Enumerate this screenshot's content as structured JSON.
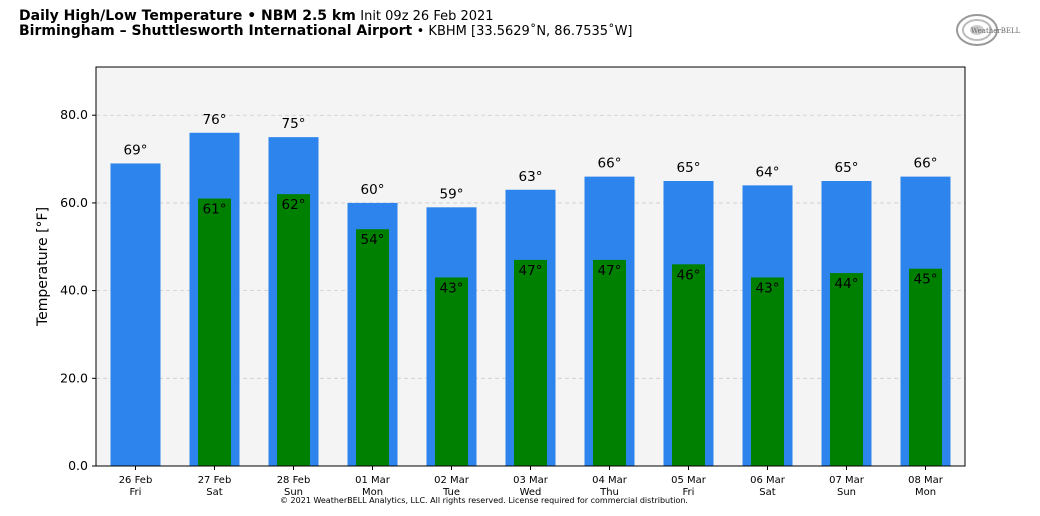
{
  "header": {
    "title_bold": "Daily High/Low Temperature • NBM 2.5 km",
    "init": "Init 09z 26 Feb 2021",
    "station_bold": "Birmingham – Shuttlesworth International Airport",
    "station_meta": "• KBHM [33.5629˚N, 86.7535˚W]"
  },
  "logo_text": "WeatherBELL",
  "copyright": "© 2021 WeatherBELL Analytics, LLC. All rights reserved. License required for commercial distribution.",
  "colors": {
    "high": "#2c84ec",
    "low": "#008000",
    "plot_bg": "#f4f4f4",
    "grid": "#cccccc"
  },
  "chart_data": {
    "type": "bar",
    "ylabel": "Temperature [°F]",
    "ylim": [
      0,
      91
    ],
    "yticks": [
      0,
      20,
      40,
      60,
      80
    ],
    "ytick_labels": [
      "0.0",
      "20.0",
      "40.0",
      "60.0",
      "80.0"
    ],
    "grid": true,
    "categories": [
      "26 Feb",
      "27 Feb",
      "28 Feb",
      "01 Mar",
      "02 Mar",
      "03 Mar",
      "04 Mar",
      "05 Mar",
      "06 Mar",
      "07 Mar",
      "08 Mar"
    ],
    "weekdays": [
      "Fri",
      "Sat",
      "Sun",
      "Mon",
      "Tue",
      "Wed",
      "Thu",
      "Fri",
      "Sat",
      "Sun",
      "Mon"
    ],
    "series": [
      {
        "key": "high",
        "values": [
          69,
          76,
          75,
          60,
          59,
          63,
          66,
          65,
          64,
          65,
          66
        ],
        "labels": [
          "69°",
          "76°",
          "75°",
          "60°",
          "59°",
          "63°",
          "66°",
          "65°",
          "64°",
          "65°",
          "66°"
        ]
      },
      {
        "key": "low",
        "values": [
          null,
          61,
          62,
          54,
          43,
          47,
          47,
          46,
          43,
          44,
          45
        ],
        "labels": [
          "",
          "61°",
          "62°",
          "54°",
          "43°",
          "47°",
          "47°",
          "46°",
          "43°",
          "44°",
          "45°"
        ]
      }
    ]
  }
}
